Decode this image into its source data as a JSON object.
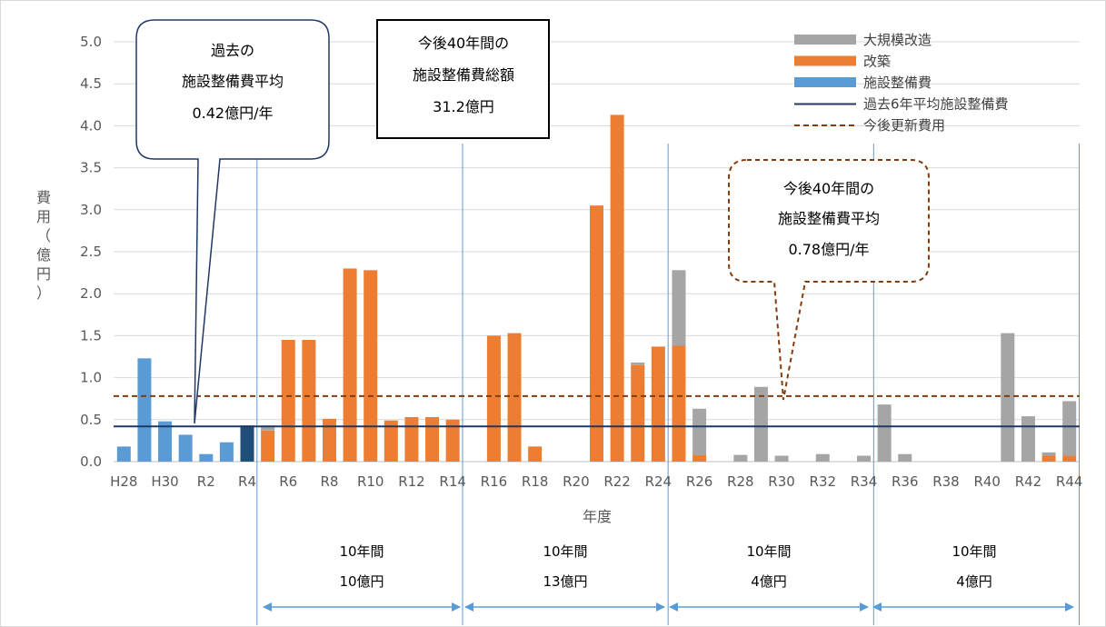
{
  "chart_data": {
    "type": "bar",
    "stacked": true,
    "xlabel": "年度",
    "ylabel_chars": [
      "費",
      "用",
      "（",
      "億",
      "円",
      "）"
    ],
    "ylim": [
      0,
      5.0
    ],
    "yticks": [
      "0.0",
      "0.5",
      "1.0",
      "1.5",
      "2.0",
      "2.5",
      "3.0",
      "3.5",
      "4.0",
      "4.5",
      "5.0"
    ],
    "categories": [
      "H28",
      "H29",
      "H30",
      "R1",
      "R2",
      "R3",
      "R4",
      "R5",
      "R6",
      "R7",
      "R8",
      "R9",
      "R10",
      "R11",
      "R12",
      "R13",
      "R14",
      "R15",
      "R16",
      "R17",
      "R18",
      "R19",
      "R20",
      "R21",
      "R22",
      "R23",
      "R24",
      "R25",
      "R26",
      "R27",
      "R28",
      "R29",
      "R30",
      "R31",
      "R32",
      "R33",
      "R34",
      "R35",
      "R36",
      "R37",
      "R38",
      "R39",
      "R40",
      "R41",
      "R42",
      "R43",
      "R44"
    ],
    "xtick_labels": [
      "H28",
      "",
      "H30",
      "",
      "R2",
      "",
      "R4",
      "",
      "R6",
      "",
      "R8",
      "",
      "R10",
      "",
      "R12",
      "",
      "R14",
      "",
      "R16",
      "",
      "R18",
      "",
      "R20",
      "",
      "R22",
      "",
      "R24",
      "",
      "R26",
      "",
      "R28",
      "",
      "R30",
      "",
      "R32",
      "",
      "R34",
      "",
      "R36",
      "",
      "R38",
      "",
      "R40",
      "",
      "R42",
      "",
      "R44"
    ],
    "series": [
      {
        "name": "施設整備費",
        "color": "#5b9bd5",
        "values": [
          0.18,
          1.23,
          0.48,
          0.32,
          0.09,
          0.23,
          0,
          0,
          0,
          0,
          0,
          0,
          0,
          0,
          0,
          0,
          0,
          0,
          0,
          0,
          0,
          0,
          0,
          0,
          0,
          0,
          0,
          0,
          0,
          0,
          0,
          0,
          0,
          0,
          0,
          0,
          0,
          0,
          0,
          0,
          0,
          0,
          0,
          0,
          0,
          0,
          0
        ]
      },
      {
        "name": "施設整備費(R4)",
        "color": "#1f4e79",
        "values": [
          0,
          0,
          0,
          0,
          0,
          0,
          0.43,
          0,
          0,
          0,
          0,
          0,
          0,
          0,
          0,
          0,
          0,
          0,
          0,
          0,
          0,
          0,
          0,
          0,
          0,
          0,
          0,
          0,
          0,
          0,
          0,
          0,
          0,
          0,
          0,
          0,
          0,
          0,
          0,
          0,
          0,
          0,
          0,
          0,
          0,
          0,
          0
        ]
      },
      {
        "name": "改築",
        "color": "#ed7d31",
        "values": [
          0,
          0,
          0,
          0,
          0,
          0,
          0,
          0.37,
          1.45,
          1.45,
          0.51,
          2.3,
          2.28,
          0.49,
          0.53,
          0.53,
          0.5,
          0,
          1.5,
          1.53,
          0.18,
          0,
          0,
          3.05,
          4.13,
          1.15,
          1.37,
          1.38,
          0.08,
          0,
          0,
          0,
          0,
          0,
          0,
          0,
          0,
          0,
          0,
          0,
          0,
          0,
          0,
          0,
          0,
          0.07,
          0.07
        ]
      },
      {
        "name": "大規模改造",
        "color": "#a5a5a5",
        "values": [
          0,
          0,
          0,
          0,
          0,
          0,
          0,
          0.06,
          0,
          0,
          0,
          0,
          0,
          0,
          0,
          0,
          0,
          0,
          0,
          0,
          0,
          0,
          0,
          0,
          0,
          0.03,
          0,
          0.9,
          0.55,
          0,
          0.08,
          0.89,
          0.07,
          0,
          0.09,
          0,
          0.07,
          0.68,
          0.09,
          0,
          0,
          0,
          0,
          1.53,
          0.54,
          0.04,
          0.65
        ]
      }
    ],
    "reference_lines": [
      {
        "name": "過去6年平均施設整備費",
        "value": 0.42,
        "color": "#1f3864",
        "style": "solid"
      },
      {
        "name": "今後更新費用",
        "value": 0.78,
        "color": "#843c0c",
        "style": "dashed"
      }
    ],
    "legend_position": "top-right",
    "grid": true
  },
  "legend": [
    {
      "label": "大規模改造",
      "color": "#a5a5a5",
      "kind": "bar"
    },
    {
      "label": "改築",
      "color": "#ed7d31",
      "kind": "bar"
    },
    {
      "label": "施設整備費",
      "color": "#5b9bd5",
      "kind": "bar"
    },
    {
      "label": "過去6年平均施設整備費",
      "color": "#1f3864",
      "kind": "line"
    },
    {
      "label": "今後更新費用",
      "color": "#843c0c",
      "kind": "dashed"
    }
  ],
  "callouts": {
    "past": {
      "lines": [
        "過去の",
        "施設整備費平均",
        "0.42億円/年"
      ]
    },
    "total": {
      "lines": [
        "今後40年間の",
        "施設整備費総額",
        "31.2億円"
      ]
    },
    "future": {
      "lines": [
        "今後40年間の",
        "施設整備費平均",
        "0.78億円/年"
      ]
    }
  },
  "periods": [
    {
      "years": "10年間",
      "amount": "10億円"
    },
    {
      "years": "10年間",
      "amount": "13億円"
    },
    {
      "years": "10年間",
      "amount": "4億円"
    },
    {
      "years": "10年間",
      "amount": "4億円"
    }
  ]
}
